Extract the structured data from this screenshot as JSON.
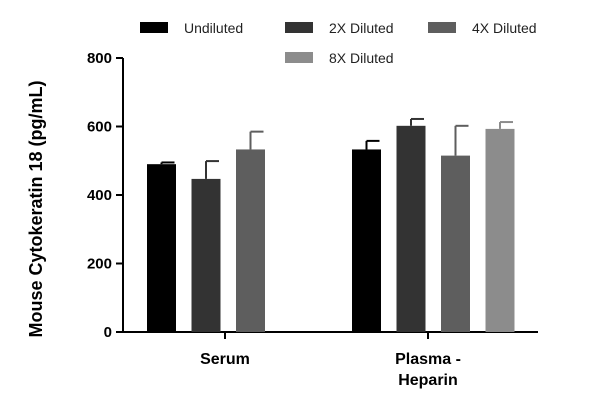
{
  "chart_data": {
    "type": "bar",
    "title": "",
    "xlabel": "",
    "ylabel": "Mouse Cytokeratin 18 (pg/mL)",
    "ylim": [
      0,
      800
    ],
    "yticks": [
      "0",
      "200",
      "400",
      "600",
      "800"
    ],
    "categories": [
      {
        "lines": [
          "Serum"
        ]
      },
      {
        "lines": [
          "Plasma -",
          "Heparin"
        ]
      }
    ],
    "series": [
      {
        "name": "Undiluted",
        "color": "#000000",
        "values": [
          490,
          533
        ],
        "errors": [
          5,
          25
        ]
      },
      {
        "name": "2X Diluted",
        "color": "#333333",
        "values": [
          447,
          602
        ],
        "errors": [
          52,
          20
        ]
      },
      {
        "name": "4X Diluted",
        "color": "#5e5e5e",
        "values": [
          533,
          515
        ],
        "errors": [
          52,
          87
        ]
      },
      {
        "name": "8X Diluted",
        "color": "#8c8c8c",
        "values": [
          0,
          593
        ],
        "errors": [
          0,
          20
        ]
      }
    ],
    "grid": false,
    "legend_position": "top"
  }
}
